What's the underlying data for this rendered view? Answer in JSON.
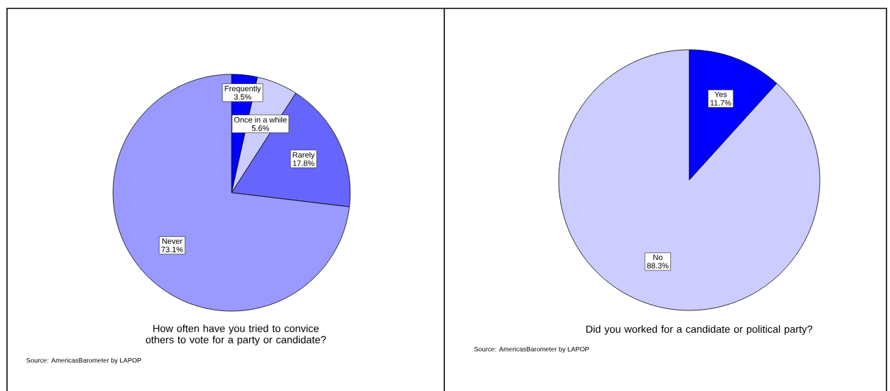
{
  "chart_data": [
    {
      "type": "pie",
      "title": "How often have you tried to convice others to vote for a party or candidate?",
      "categories": [
        "Frequently",
        "Once in a while",
        "Rarely",
        "Never"
      ],
      "values": [
        3.5,
        5.6,
        17.8,
        73.1
      ],
      "value_labels": [
        "3.5%",
        "5.6%",
        "17.8%",
        "73.1%"
      ],
      "colors": [
        "#0000ff",
        "#ccccff",
        "#6666ff",
        "#9999ff"
      ],
      "annotations": [
        "Source: AmericasBarometer by  LAPOP"
      ]
    },
    {
      "type": "pie",
      "title": "Did you worked for a candidate or political party?",
      "categories": [
        "Yes",
        "No"
      ],
      "values": [
        11.7,
        88.3
      ],
      "value_labels": [
        "11.7%",
        "88.3%"
      ],
      "colors": [
        "#0000ff",
        "#ccccff"
      ],
      "annotations": [
        "Source: AmericasBarometer by  LAPOP"
      ]
    }
  ]
}
